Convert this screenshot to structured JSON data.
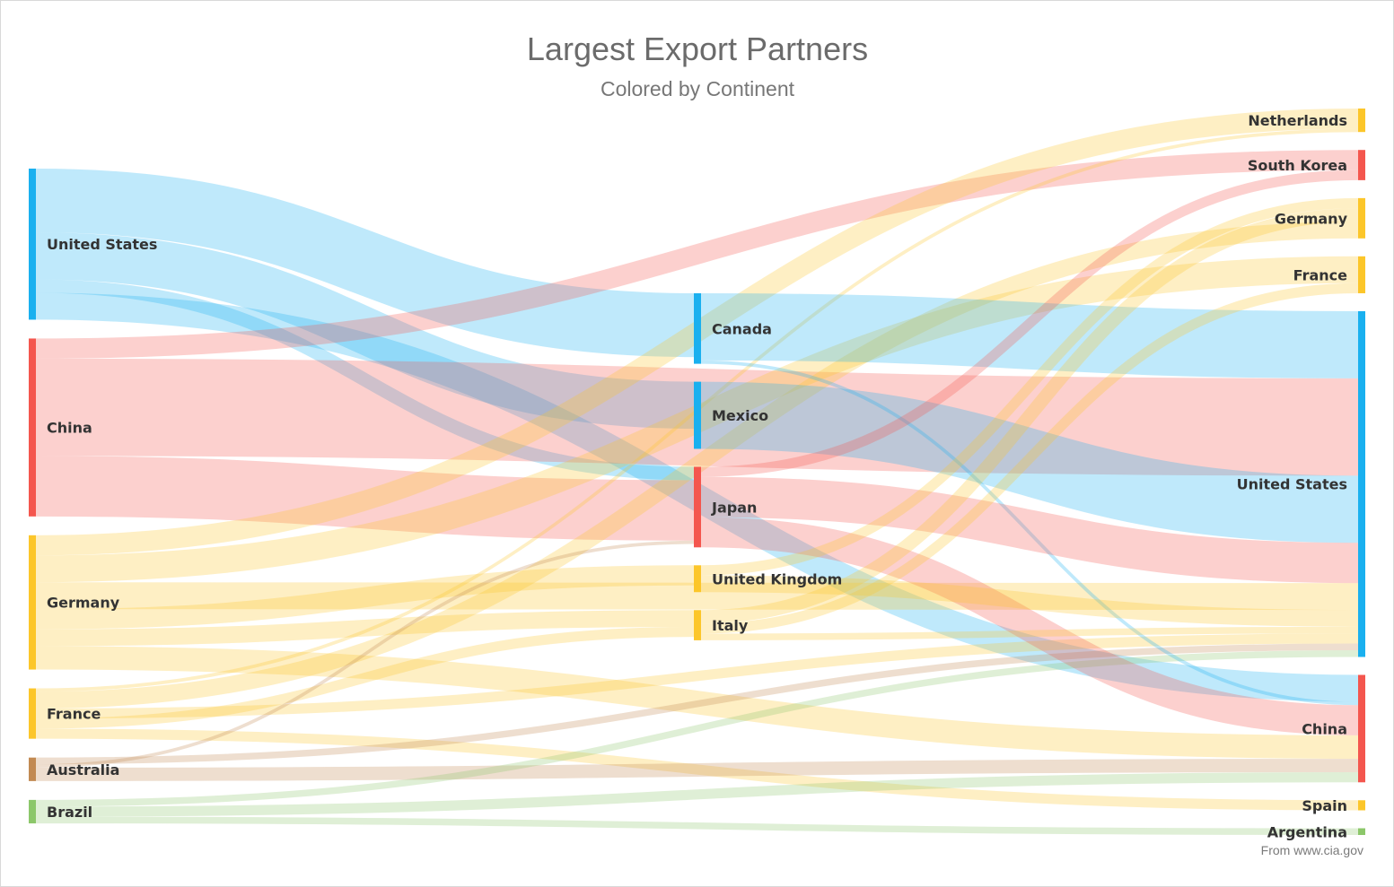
{
  "chart_data": {
    "type": "sankey",
    "title": "Largest Export Partners",
    "subtitle": "Colored by Continent",
    "credit": "From www.cia.gov",
    "colors": {
      "north_america": "#1ab0ef",
      "asia": "#f4564e",
      "europe": "#fcc62a",
      "oceania": "#c28a52",
      "south_america": "#8cc76a"
    },
    "nodes": [
      {
        "id": "src-united-states",
        "label": "United States",
        "column": 0,
        "color": "#1ab0ef"
      },
      {
        "id": "src-china",
        "label": "China",
        "column": 0,
        "color": "#f4564e"
      },
      {
        "id": "src-germany",
        "label": "Germany",
        "column": 0,
        "color": "#fcc62a"
      },
      {
        "id": "src-france",
        "label": "France",
        "column": 0,
        "color": "#fcc62a"
      },
      {
        "id": "src-australia",
        "label": "Australia",
        "column": 0,
        "color": "#c28a52"
      },
      {
        "id": "src-brazil",
        "label": "Brazil",
        "column": 0,
        "color": "#8cc76a"
      },
      {
        "id": "mid-canada",
        "label": "Canada",
        "column": 1,
        "color": "#1ab0ef"
      },
      {
        "id": "mid-mexico",
        "label": "Mexico",
        "column": 1,
        "color": "#1ab0ef"
      },
      {
        "id": "mid-japan",
        "label": "Japan",
        "column": 1,
        "color": "#f4564e"
      },
      {
        "id": "mid-united-kingdom",
        "label": "United Kingdom",
        "column": 1,
        "color": "#fcc62a"
      },
      {
        "id": "mid-italy",
        "label": "Italy",
        "column": 1,
        "color": "#fcc62a"
      },
      {
        "id": "dst-netherlands",
        "label": "Netherlands",
        "column": 2,
        "color": "#fcc62a"
      },
      {
        "id": "dst-south-korea",
        "label": "South Korea",
        "column": 2,
        "color": "#f4564e"
      },
      {
        "id": "dst-germany",
        "label": "Germany",
        "column": 2,
        "color": "#fcc62a"
      },
      {
        "id": "dst-france",
        "label": "France",
        "column": 2,
        "color": "#fcc62a"
      },
      {
        "id": "dst-united-states",
        "label": "United States",
        "column": 2,
        "color": "#1ab0ef"
      },
      {
        "id": "dst-china",
        "label": "China",
        "column": 2,
        "color": "#f4564e"
      },
      {
        "id": "dst-spain",
        "label": "Spain",
        "column": 2,
        "color": "#fcc62a"
      },
      {
        "id": "dst-argentina",
        "label": "Argentina",
        "column": 2,
        "color": "#8cc76a"
      }
    ],
    "links": [
      {
        "source": "src-united-states",
        "target": "mid-canada",
        "value": 19
      },
      {
        "source": "src-united-states",
        "target": "mid-mexico",
        "value": 14
      },
      {
        "source": "src-united-states",
        "target": "dst-china",
        "value": 8
      },
      {
        "source": "src-united-states",
        "target": "mid-japan",
        "value": 4
      },
      {
        "source": "src-china",
        "target": "dst-south-korea",
        "value": 6
      },
      {
        "source": "src-china",
        "target": "dst-united-states",
        "value": 29
      },
      {
        "source": "src-china",
        "target": "mid-japan",
        "value": 18
      },
      {
        "source": "src-germany",
        "target": "dst-netherlands",
        "value": 6
      },
      {
        "source": "src-germany",
        "target": "dst-france",
        "value": 8
      },
      {
        "source": "src-germany",
        "target": "dst-united-states",
        "value": 8
      },
      {
        "source": "src-germany",
        "target": "mid-united-kingdom",
        "value": 6
      },
      {
        "source": "src-germany",
        "target": "mid-italy",
        "value": 5
      },
      {
        "source": "src-germany",
        "target": "dst-china",
        "value": 7
      },
      {
        "source": "src-france",
        "target": "dst-germany",
        "value": 5
      },
      {
        "source": "src-france",
        "target": "mid-italy",
        "value": 3
      },
      {
        "source": "src-france",
        "target": "dst-united-states",
        "value": 3
      },
      {
        "source": "src-france",
        "target": "dst-spain",
        "value": 3
      },
      {
        "source": "src-france",
        "target": "dst-netherlands",
        "value": 1
      },
      {
        "source": "src-australia",
        "target": "dst-united-states",
        "value": 2
      },
      {
        "source": "src-australia",
        "target": "dst-china",
        "value": 4
      },
      {
        "source": "src-australia",
        "target": "mid-japan",
        "value": 1
      },
      {
        "source": "src-brazil",
        "target": "dst-united-states",
        "value": 2
      },
      {
        "source": "src-brazil",
        "target": "dst-china",
        "value": 3
      },
      {
        "source": "src-brazil",
        "target": "dst-argentina",
        "value": 2
      },
      {
        "source": "mid-canada",
        "target": "dst-united-states",
        "value": 20
      },
      {
        "source": "mid-canada",
        "target": "dst-china",
        "value": 1
      },
      {
        "source": "mid-mexico",
        "target": "dst-united-states",
        "value": 20
      },
      {
        "source": "mid-japan",
        "target": "dst-south-korea",
        "value": 3
      },
      {
        "source": "mid-japan",
        "target": "dst-united-states",
        "value": 12
      },
      {
        "source": "mid-japan",
        "target": "dst-china",
        "value": 9
      },
      {
        "source": "mid-united-kingdom",
        "target": "dst-germany",
        "value": 3
      },
      {
        "source": "mid-united-kingdom",
        "target": "dst-united-states",
        "value": 5
      },
      {
        "source": "mid-italy",
        "target": "dst-germany",
        "value": 4
      },
      {
        "source": "mid-italy",
        "target": "dst-france",
        "value": 3
      },
      {
        "source": "mid-italy",
        "target": "dst-united-states",
        "value": 2
      }
    ]
  }
}
